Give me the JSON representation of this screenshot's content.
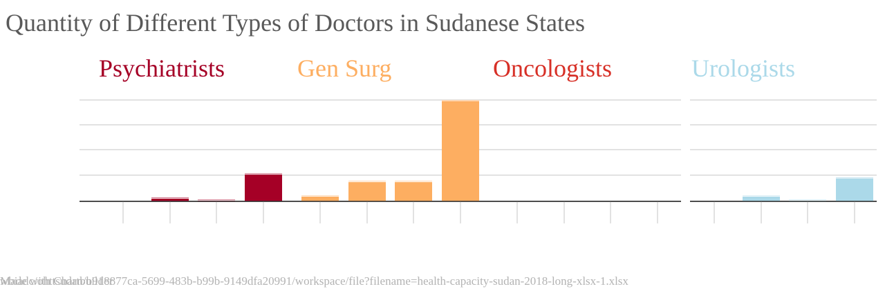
{
  "title": "Quantity of Different Types of Doctors in Sudanese States",
  "footer": {
    "made_with": "Made with Chartbuilder",
    "source": "wbiadc/ohttsudan/b918877ca-5699-483b-b99b-9149dfa20991/workspace/file?filename=health-capacity-sudan-2018-long-xlsx-1.xlsx"
  },
  "colors": {
    "Psychiatrists": "#a50026",
    "Gen Surg": "#fdae61",
    "Oncologists": "#d73027",
    "Urologists": "#abd9e9",
    "grid": "#d9d9d9",
    "axis": "#333333",
    "text": "#595959",
    "footer": "#b3b3b3"
  },
  "chart_data": {
    "type": "bar",
    "layout": "small-multiples",
    "title": "Quantity of Different Types of Doctors in Sudanese States",
    "grid": true,
    "ylim": [
      0,
      40
    ],
    "panels": [
      {
        "name": "Psychiatrists",
        "values": [
          0,
          1.5,
          0.7,
          11
        ]
      },
      {
        "name": "Gen Surg",
        "values": [
          2.3,
          8,
          8,
          40
        ]
      },
      {
        "name": "Oncologists",
        "values": [
          0,
          0,
          0,
          0
        ]
      },
      {
        "name": "Urologists",
        "values": [
          0,
          2.3,
          0.7,
          9.5
        ]
      }
    ]
  }
}
